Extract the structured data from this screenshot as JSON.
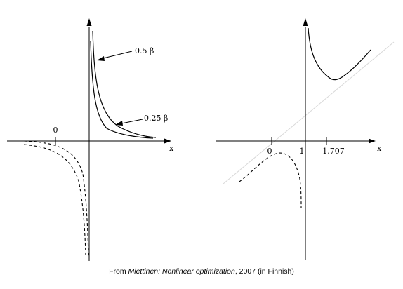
{
  "left_plot": {
    "origin_label": "0",
    "x_axis_label": "x",
    "curve_labels": [
      "0.5  β",
      "0.25  β"
    ]
  },
  "right_plot": {
    "x_axis_label": "x",
    "tick_labels": [
      "0",
      "1",
      "1.707"
    ]
  },
  "caption": {
    "prefix": "From ",
    "source": "Miettinen: Nonlinear optimization",
    "suffix": ", 2007 (in Finnish)"
  },
  "colors": {
    "ink": "#000000",
    "faint_line": "#d8d8d8"
  }
}
